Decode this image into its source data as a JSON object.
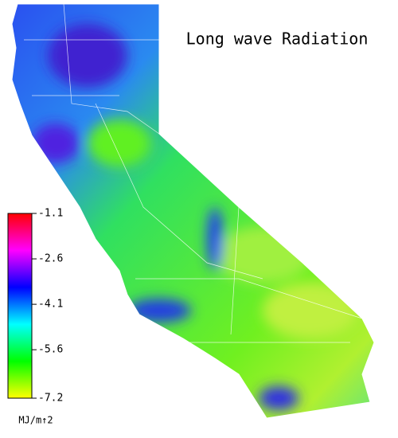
{
  "title": "Long wave Radiation",
  "colorbar": {
    "lim": [
      -7.2,
      -1.1
    ],
    "ticks": [
      -1.1,
      -2.6,
      -4.1,
      -5.6,
      -7.2
    ],
    "label": "MJ/m↑2",
    "colors": [
      "#ffff00",
      "#00ff00",
      "#00ffff",
      "#0000ff",
      "#ff00ff",
      "#ff0000"
    ]
  }
}
